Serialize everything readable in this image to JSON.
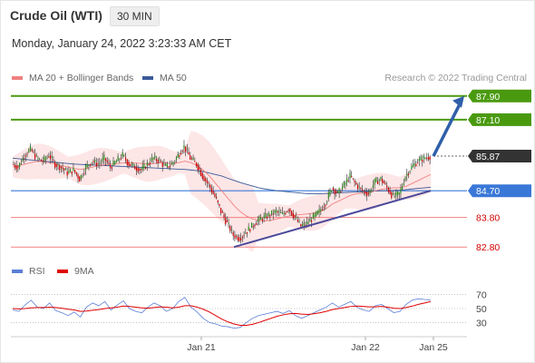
{
  "header": {
    "instrument": "Crude Oil (WTI)",
    "timeframe": "30 MIN",
    "datetime": "Monday, January 24, 2022 3:23:33 AM CET",
    "credit": "Research © 2022 Trading Central"
  },
  "legends": {
    "price": [
      {
        "label": "MA 20 + Bollinger Bands",
        "color": "#f08080"
      },
      {
        "label": "MA 50",
        "color": "#3a5a9a"
      }
    ],
    "rsi": [
      {
        "label": "RSI",
        "color": "#5b7fd6"
      },
      {
        "label": "9MA",
        "color": "#e00000"
      }
    ]
  },
  "chart_data": [
    {
      "type": "candlestick",
      "x_tick_labels": [
        "Jan 21",
        "Jan 22",
        "Jan 25"
      ],
      "levels": [
        {
          "value": 87.9,
          "label": "87.90",
          "kind": "resistance",
          "color": "#4a9a10"
        },
        {
          "value": 87.1,
          "label": "87.10",
          "kind": "resistance",
          "color": "#4a9a10"
        },
        {
          "value": 85.87,
          "label": "85.87",
          "kind": "last-price",
          "color": "#333333"
        },
        {
          "value": 84.7,
          "label": "84.70",
          "kind": "pivot",
          "color": "#3a78d8"
        },
        {
          "value": 83.8,
          "label": "83.80",
          "kind": "support",
          "color": "#f08080"
        },
        {
          "value": 82.8,
          "label": "82.80",
          "kind": "support",
          "color": "#f08080"
        }
      ],
      "last_price": 85.87,
      "target": 87.9,
      "ylim": [
        82.5,
        88.2
      ],
      "close_path": [
        85.6,
        85.5,
        85.9,
        86.1,
        85.8,
        85.7,
        85.9,
        85.6,
        85.5,
        85.3,
        85.4,
        85.1,
        85.5,
        85.7,
        85.6,
        85.8,
        85.5,
        85.7,
        85.9,
        85.6,
        85.5,
        85.4,
        85.6,
        85.8,
        85.7,
        85.5,
        85.6,
        85.9,
        86.2,
        85.8,
        85.6,
        85.2,
        84.9,
        84.5,
        84.0,
        83.6,
        83.2,
        83.1,
        83.3,
        83.5,
        83.7,
        83.8,
        83.9,
        84.0,
        83.9,
        84.1,
        83.8,
        83.5,
        83.6,
        83.8,
        84.0,
        84.3,
        84.8,
        84.6,
        84.9,
        85.2,
        84.9,
        84.7,
        84.6,
        85.0,
        85.1,
        84.8,
        84.5,
        84.6,
        85.2,
        85.5,
        85.7,
        85.8,
        85.87
      ],
      "ma20": [
        85.5,
        85.55,
        85.6,
        85.65,
        85.7,
        85.68,
        85.65,
        85.6,
        85.55,
        85.5,
        85.45,
        85.42,
        85.45,
        85.5,
        85.55,
        85.58,
        85.6,
        85.62,
        85.64,
        85.65,
        85.64,
        85.62,
        85.6,
        85.62,
        85.65,
        85.64,
        85.62,
        85.65,
        85.7,
        85.65,
        85.55,
        85.4,
        85.2,
        84.95,
        84.7,
        84.45,
        84.2,
        84.0,
        83.85,
        83.75,
        83.7,
        83.68,
        83.7,
        83.75,
        83.8,
        83.85,
        83.88,
        83.9,
        83.92,
        83.95,
        84.0,
        84.1,
        84.25,
        84.35,
        84.45,
        84.55,
        84.6,
        84.62,
        84.65,
        84.7,
        84.75,
        84.78,
        84.8,
        84.8,
        84.85,
        84.95,
        85.05,
        85.15,
        85.25
      ],
      "ma50": [
        85.8,
        85.78,
        85.76,
        85.74,
        85.72,
        85.7,
        85.68,
        85.66,
        85.64,
        85.62,
        85.6,
        85.59,
        85.58,
        85.57,
        85.56,
        85.55,
        85.54,
        85.53,
        85.52,
        85.51,
        85.5,
        85.49,
        85.48,
        85.47,
        85.46,
        85.45,
        85.44,
        85.43,
        85.42,
        85.4,
        85.38,
        85.35,
        85.3,
        85.25,
        85.2,
        85.12,
        85.05,
        84.98,
        84.92,
        84.86,
        84.8,
        84.76,
        84.73,
        84.7,
        84.68,
        84.66,
        84.64,
        84.62,
        84.6,
        84.6,
        84.6,
        84.61,
        84.62,
        84.63,
        84.64,
        84.65,
        84.66,
        84.67,
        84.68,
        84.69,
        84.7,
        84.7,
        84.71,
        84.72,
        84.74,
        84.76,
        84.78,
        84.8,
        84.82
      ],
      "trendline": {
        "from": {
          "index": 36,
          "value": 82.8
        },
        "to": {
          "index": 68,
          "value": 84.7
        }
      }
    },
    {
      "type": "line",
      "ylim": [
        15,
        85
      ],
      "y_tick_labels": [
        "70",
        "50",
        "30"
      ],
      "y_ticks": [
        70,
        50,
        30
      ],
      "series": [
        {
          "name": "RSI",
          "values": [
            48,
            46,
            55,
            62,
            52,
            50,
            58,
            47,
            44,
            40,
            45,
            38,
            52,
            58,
            54,
            60,
            48,
            55,
            61,
            50,
            46,
            44,
            52,
            58,
            54,
            46,
            50,
            60,
            66,
            52,
            45,
            36,
            30,
            28,
            25,
            24,
            22,
            23,
            30,
            36,
            40,
            42,
            44,
            46,
            43,
            47,
            40,
            36,
            40,
            44,
            48,
            52,
            58,
            52,
            56,
            60,
            52,
            48,
            46,
            54,
            56,
            50,
            44,
            46,
            56,
            62,
            64,
            63,
            62
          ]
        },
        {
          "name": "9MA",
          "values": [
            50,
            49.5,
            50,
            51,
            51.5,
            51.5,
            52,
            51.5,
            50.5,
            49,
            48,
            46,
            46.5,
            47.5,
            48.5,
            50,
            51,
            52,
            53.5,
            53,
            52,
            51,
            50.5,
            51.5,
            52.5,
            52,
            51,
            52,
            54,
            54,
            52,
            49,
            45,
            40,
            35,
            31,
            28,
            26,
            26,
            27.5,
            30,
            33,
            36,
            39,
            41,
            42.5,
            43,
            42,
            41.5,
            42.5,
            44,
            46,
            48.5,
            50,
            51.5,
            53,
            53.5,
            53,
            52.5,
            52.5,
            53,
            52,
            50.5,
            50,
            51.5,
            53.5,
            56,
            58,
            60
          ]
        }
      ]
    }
  ]
}
